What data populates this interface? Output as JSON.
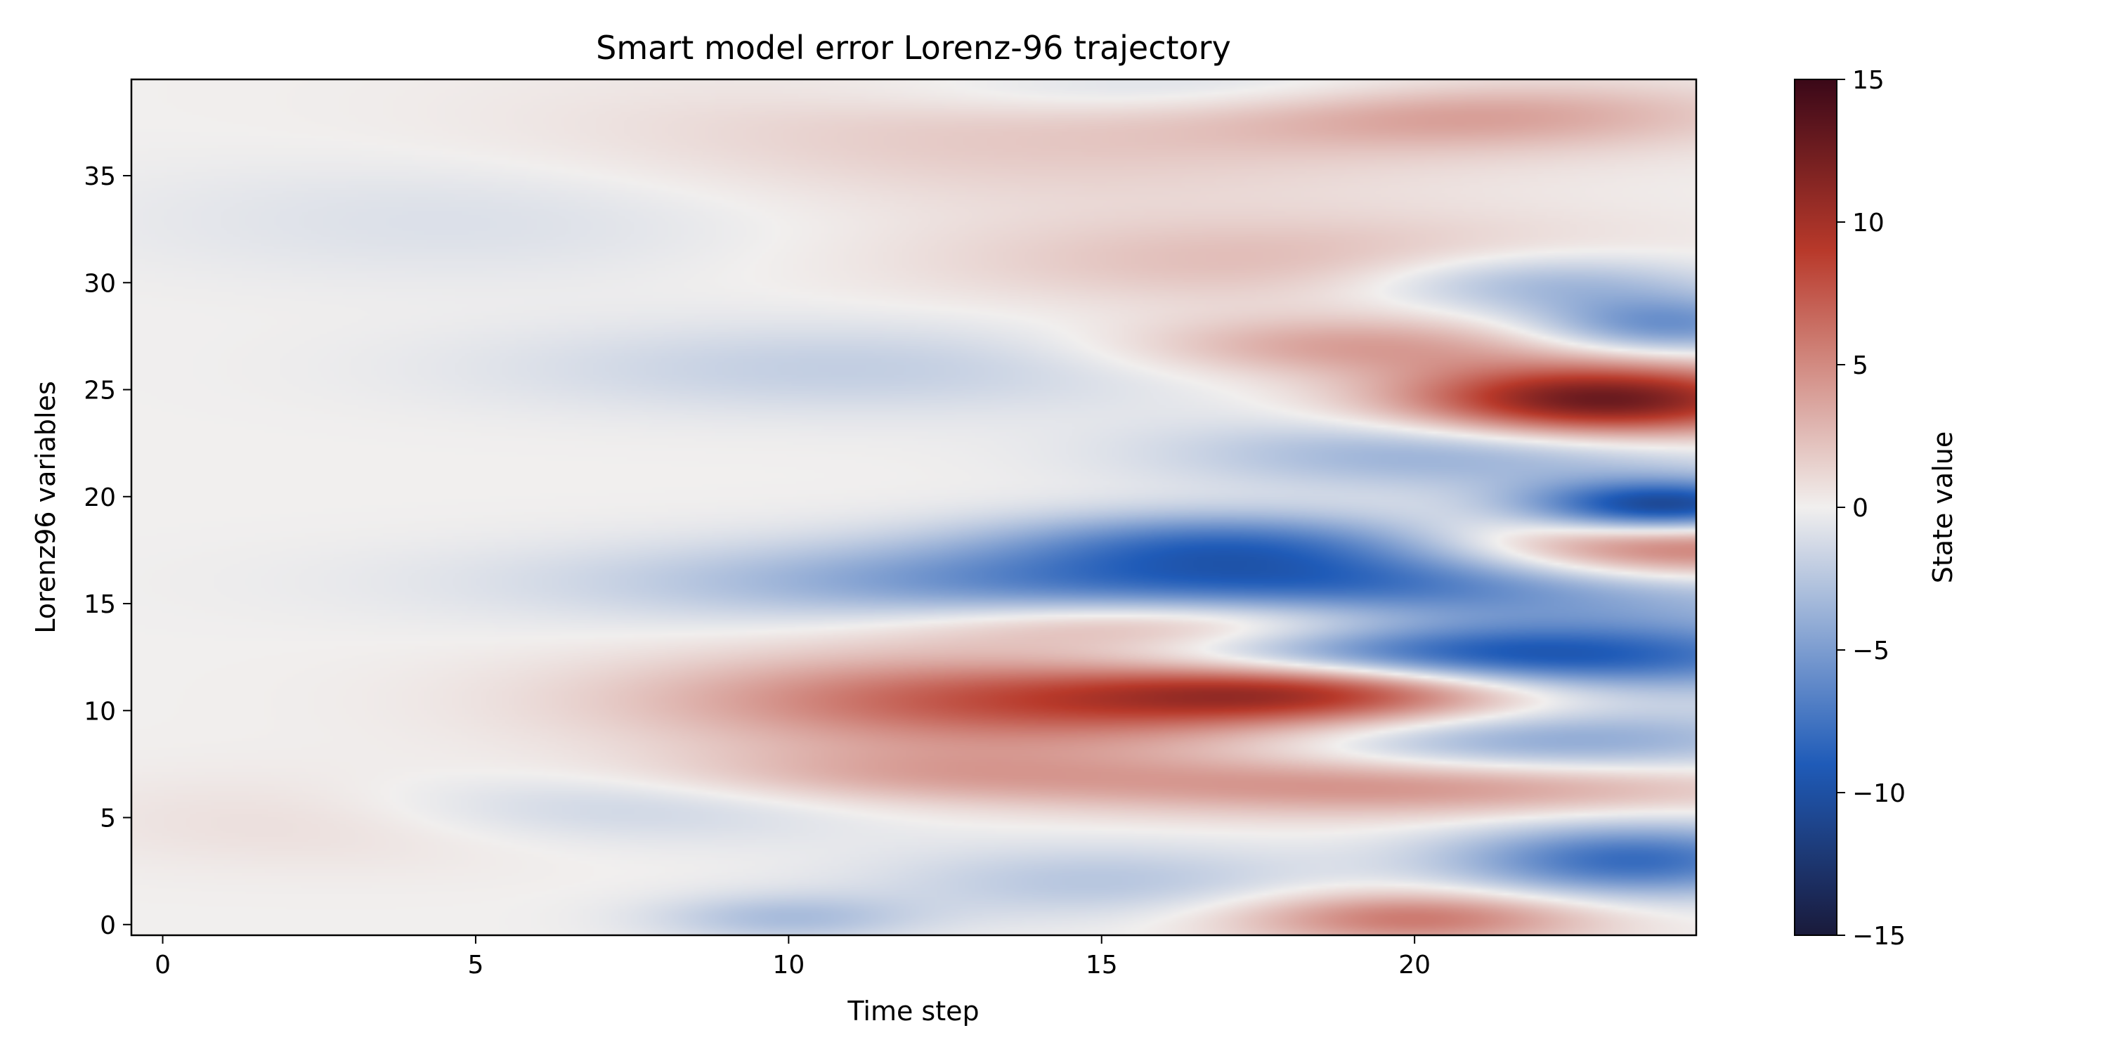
{
  "chart_data": {
    "type": "heatmap",
    "title": "Smart model error Lorenz-96 trajectory",
    "xlabel": "Time step",
    "ylabel": "Lorenz96 variables",
    "xlim": [
      -0.5,
      24.5
    ],
    "ylim": [
      -0.5,
      39.5
    ],
    "x_ticks": [
      0,
      5,
      10,
      15,
      20
    ],
    "y_ticks": [
      0,
      5,
      10,
      15,
      20,
      25,
      30,
      35
    ],
    "colorbar": {
      "label": "State value",
      "range": [
        -15,
        15
      ],
      "ticks": [
        15,
        10,
        5,
        0,
        -5,
        -10,
        -15
      ],
      "tick_labels": [
        "15",
        "10",
        "5",
        "0",
        "−5",
        "−10",
        "−15"
      ],
      "colormap": "balance",
      "colors": {
        "low": "#1a1a3a",
        "mid": "#f1efee",
        "high": "#3a0818",
        "blue": "#1f5bb8",
        "red": "#b8392a"
      }
    },
    "grid": false,
    "features": [
      {
        "t": 18,
        "v": 16,
        "value": -9,
        "dt": 6,
        "dv": 1.4
      },
      {
        "t": 21,
        "v": 12.5,
        "value": -11,
        "dt": 4,
        "dv": 1.2
      },
      {
        "t": 24,
        "v": 19.5,
        "value": -12,
        "dt": 1.6,
        "dv": 0.9
      },
      {
        "t": 23,
        "v": 24.5,
        "value": 13,
        "dt": 2.2,
        "dv": 1.2
      },
      {
        "t": 24,
        "v": 17.5,
        "value": 9,
        "dt": 2.5,
        "dv": 1.2
      },
      {
        "t": 14,
        "v": 10.5,
        "value": 8,
        "dt": 4,
        "dv": 1.6
      },
      {
        "t": 18.5,
        "v": 11,
        "value": 9,
        "dt": 2.5,
        "dv": 1.0
      },
      {
        "t": 16.5,
        "v": 14,
        "value": 6,
        "dt": 3,
        "dv": 1.0
      },
      {
        "t": 23.5,
        "v": 3,
        "value": -8,
        "dt": 2,
        "dv": 1.2
      },
      {
        "t": 24,
        "v": 28,
        "value": -6,
        "dt": 1.5,
        "dv": 1.0
      },
      {
        "t": 20.5,
        "v": 22,
        "value": -4,
        "dt": 3,
        "dv": 1.2
      },
      {
        "t": 22,
        "v": 8.5,
        "value": -5,
        "dt": 3,
        "dv": 1.2
      },
      {
        "t": 20,
        "v": 0.3,
        "value": 6,
        "dt": 2,
        "dv": 0.9
      },
      {
        "t": 20,
        "v": 6.5,
        "value": 5,
        "dt": 4,
        "dv": 1.0
      },
      {
        "t": 12,
        "v": 7,
        "value": 3,
        "dt": 3,
        "dv": 1.0
      },
      {
        "t": 21,
        "v": 38,
        "value": 4,
        "dt": 3,
        "dv": 1.2
      },
      {
        "t": 19,
        "v": 27,
        "value": 4,
        "dt": 2.5,
        "dv": 1.0
      },
      {
        "t": 22,
        "v": 30,
        "value": -4,
        "dt": 2,
        "dv": 1.0
      },
      {
        "t": 17,
        "v": 18,
        "value": -5,
        "dt": 2.5,
        "dv": 1.0
      },
      {
        "t": 10,
        "v": 0.3,
        "value": -3,
        "dt": 1.5,
        "dv": 0.8
      },
      {
        "t": 15,
        "v": 2,
        "value": -2.5,
        "dt": 2.5,
        "dv": 1.2
      },
      {
        "t": 7,
        "v": 5.5,
        "value": -2,
        "dt": 3,
        "dv": 1.2
      },
      {
        "t": 11,
        "v": 26,
        "value": -2,
        "dt": 4,
        "dv": 1.5
      },
      {
        "t": 14,
        "v": 37,
        "value": 2,
        "dt": 5,
        "dv": 2.5
      },
      {
        "t": 17,
        "v": 39,
        "value": -2.5,
        "dt": 4,
        "dv": 1.0
      },
      {
        "t": 18,
        "v": 31,
        "value": 2.5,
        "dt": 4,
        "dv": 1.5
      },
      {
        "t": 3,
        "v": 5,
        "value": 1.2,
        "dt": 3,
        "dv": 1.5
      },
      {
        "t": 5,
        "v": 33,
        "value": -1,
        "dt": 4,
        "dv": 2
      }
    ]
  }
}
